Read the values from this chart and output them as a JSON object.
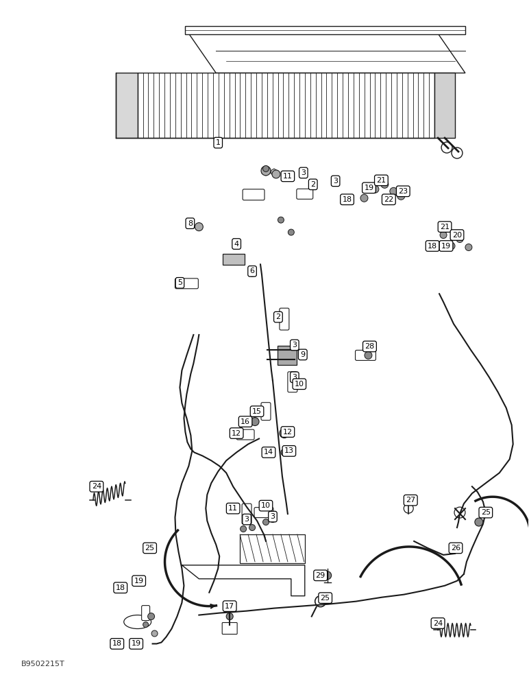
{
  "watermark": "B9502215T",
  "bg_color": "#ffffff",
  "line_color": "#1a1a1a",
  "fig_width": 7.72,
  "fig_height": 10.0,
  "dpi": 100
}
